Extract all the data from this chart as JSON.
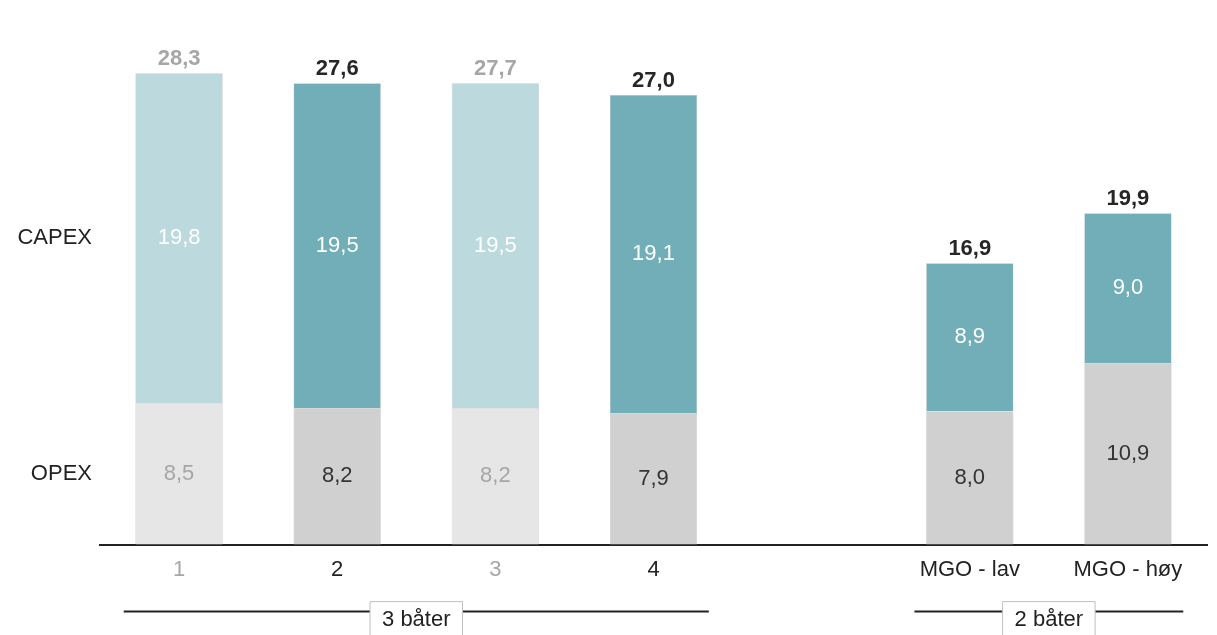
{
  "chart_data": {
    "type": "bar",
    "stacked": true,
    "categories": [
      "1",
      "2",
      "3",
      "4",
      null,
      "MGO - lav",
      "MGO - høy"
    ],
    "series": [
      {
        "name": "OPEX",
        "colors": [
          "#e6e6e6",
          "#d0d0d0",
          "#e6e6e6",
          "#d0d0d0",
          null,
          "#d0d0d0",
          "#d0d0d0"
        ],
        "values": [
          8.5,
          8.2,
          8.2,
          7.9,
          null,
          8.0,
          10.9
        ],
        "value_labels": [
          "8,5",
          "8,2",
          "8,2",
          "7,9",
          null,
          "8,0",
          "10,9"
        ]
      },
      {
        "name": "CAPEX",
        "colors": [
          "#bcd9de",
          "#72aeb8",
          "#bcd9de",
          "#72aeb8",
          null,
          "#72aeb8",
          "#72aeb8"
        ],
        "values": [
          19.8,
          19.5,
          19.5,
          19.1,
          null,
          8.9,
          9.0
        ],
        "value_labels": [
          "19,8",
          "19,5",
          "19,5",
          "19,1",
          null,
          "8,9",
          "9,0"
        ]
      }
    ],
    "totals": [
      "28,3",
      "27,6",
      "27,7",
      "27,0",
      null,
      "16,9",
      "19,9"
    ],
    "annotations": [
      "3 båter",
      "2 båter"
    ],
    "legend": false,
    "grid": false
  }
}
